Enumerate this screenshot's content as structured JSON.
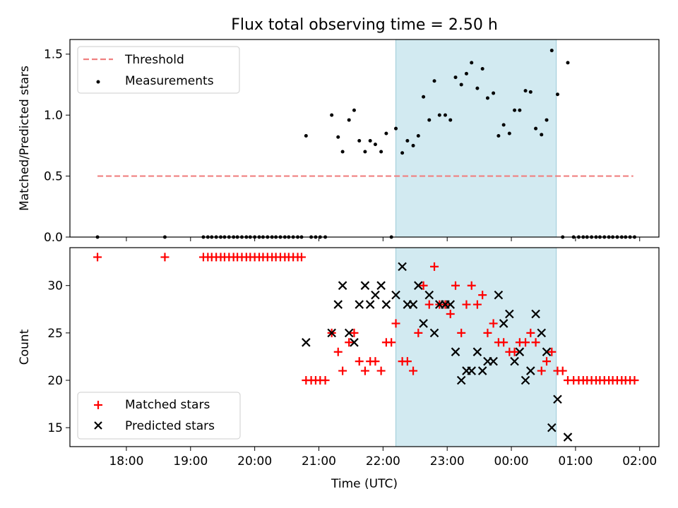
{
  "title": "Flux total observing time = 2.50 h",
  "chart_data": [
    {
      "type": "scatter",
      "panel": "top",
      "ylabel": "Matched/Predicted stars",
      "ylim": [
        0,
        1.62
      ],
      "yticks": [
        "0.0",
        "0.5",
        "1.0",
        "1.5"
      ],
      "ytick_values": [
        0,
        0.5,
        1.0,
        1.5
      ],
      "legend_position": "top-left",
      "threshold": {
        "label": "Threshold",
        "value": 0.5,
        "x_start": 17.55,
        "x_end": 25.9,
        "color": "#f08080"
      },
      "series": [
        {
          "name": "Measurements",
          "color": "#000000",
          "points": [
            [
              17.55,
              0
            ],
            [
              18.6,
              0
            ],
            [
              19.2,
              0
            ],
            [
              19.27,
              0
            ],
            [
              19.33,
              0
            ],
            [
              19.4,
              0
            ],
            [
              19.47,
              0
            ],
            [
              19.53,
              0
            ],
            [
              19.6,
              0
            ],
            [
              19.67,
              0
            ],
            [
              19.73,
              0
            ],
            [
              19.8,
              0
            ],
            [
              19.87,
              0
            ],
            [
              19.93,
              0
            ],
            [
              20.0,
              0
            ],
            [
              20.07,
              0
            ],
            [
              20.13,
              0
            ],
            [
              20.2,
              0
            ],
            [
              20.27,
              0
            ],
            [
              20.33,
              0
            ],
            [
              20.4,
              0
            ],
            [
              20.47,
              0
            ],
            [
              20.53,
              0
            ],
            [
              20.6,
              0
            ],
            [
              20.67,
              0
            ],
            [
              20.73,
              0
            ],
            [
              20.88,
              0
            ],
            [
              20.95,
              0
            ],
            [
              21.02,
              0
            ],
            [
              21.1,
              0
            ],
            [
              22.13,
              0
            ],
            [
              20.8,
              0.83
            ],
            [
              21.2,
              1.0
            ],
            [
              21.3,
              0.82
            ],
            [
              21.37,
              0.7
            ],
            [
              21.47,
              0.96
            ],
            [
              21.55,
              1.04
            ],
            [
              21.63,
              0.79
            ],
            [
              21.72,
              0.7
            ],
            [
              21.8,
              0.79
            ],
            [
              21.88,
              0.76
            ],
            [
              21.97,
              0.7
            ],
            [
              22.05,
              0.85
            ],
            [
              22.2,
              0.89
            ],
            [
              22.3,
              0.69
            ],
            [
              22.38,
              0.79
            ],
            [
              22.47,
              0.75
            ],
            [
              22.55,
              0.83
            ],
            [
              22.63,
              1.15
            ],
            [
              22.72,
              0.96
            ],
            [
              22.8,
              1.28
            ],
            [
              22.88,
              1.0
            ],
            [
              22.97,
              1.0
            ],
            [
              23.05,
              0.96
            ],
            [
              23.13,
              1.31
            ],
            [
              23.22,
              1.25
            ],
            [
              23.3,
              1.34
            ],
            [
              23.38,
              1.43
            ],
            [
              23.47,
              1.22
            ],
            [
              23.55,
              1.38
            ],
            [
              23.63,
              1.14
            ],
            [
              23.72,
              1.18
            ],
            [
              23.8,
              0.83
            ],
            [
              23.88,
              0.92
            ],
            [
              23.97,
              0.85
            ],
            [
              24.05,
              1.04
            ],
            [
              24.13,
              1.04
            ],
            [
              24.22,
              1.2
            ],
            [
              24.3,
              1.19
            ],
            [
              24.38,
              0.89
            ],
            [
              24.47,
              0.84
            ],
            [
              24.55,
              0.96
            ],
            [
              24.63,
              1.53
            ],
            [
              24.72,
              1.17
            ],
            [
              24.88,
              1.43
            ],
            [
              24.8,
              0
            ],
            [
              24.97,
              0
            ],
            [
              25.05,
              0
            ],
            [
              25.12,
              0
            ],
            [
              25.18,
              0
            ],
            [
              25.25,
              0
            ],
            [
              25.32,
              0
            ],
            [
              25.38,
              0
            ],
            [
              25.45,
              0
            ],
            [
              25.52,
              0
            ],
            [
              25.58,
              0
            ],
            [
              25.65,
              0
            ],
            [
              25.72,
              0
            ],
            [
              25.78,
              0
            ],
            [
              25.85,
              0
            ],
            [
              25.92,
              0
            ]
          ]
        }
      ]
    },
    {
      "type": "scatter",
      "panel": "bottom",
      "xlabel": "Time (UTC)",
      "ylabel": "Count",
      "ylim": [
        13,
        34
      ],
      "yticks": [
        "15",
        "20",
        "25",
        "30"
      ],
      "ytick_values": [
        15,
        20,
        25,
        30
      ],
      "legend_position": "bottom-left",
      "series": [
        {
          "name": "Matched stars",
          "color": "#ff0000",
          "marker": "plus",
          "points": [
            [
              17.55,
              33
            ],
            [
              18.6,
              33
            ],
            [
              19.2,
              33
            ],
            [
              19.27,
              33
            ],
            [
              19.33,
              33
            ],
            [
              19.4,
              33
            ],
            [
              19.47,
              33
            ],
            [
              19.53,
              33
            ],
            [
              19.6,
              33
            ],
            [
              19.67,
              33
            ],
            [
              19.73,
              33
            ],
            [
              19.8,
              33
            ],
            [
              19.87,
              33
            ],
            [
              19.93,
              33
            ],
            [
              20.0,
              33
            ],
            [
              20.07,
              33
            ],
            [
              20.13,
              33
            ],
            [
              20.2,
              33
            ],
            [
              20.27,
              33
            ],
            [
              20.33,
              33
            ],
            [
              20.4,
              33
            ],
            [
              20.47,
              33
            ],
            [
              20.53,
              33
            ],
            [
              20.6,
              33
            ],
            [
              20.67,
              33
            ],
            [
              20.73,
              33
            ],
            [
              20.8,
              20
            ],
            [
              20.88,
              20
            ],
            [
              20.95,
              20
            ],
            [
              21.02,
              20
            ],
            [
              21.1,
              20
            ],
            [
              21.2,
              25
            ],
            [
              21.3,
              23
            ],
            [
              21.37,
              21
            ],
            [
              21.47,
              24
            ],
            [
              21.55,
              25
            ],
            [
              21.63,
              22
            ],
            [
              21.72,
              21
            ],
            [
              21.8,
              22
            ],
            [
              21.88,
              22
            ],
            [
              21.97,
              21
            ],
            [
              22.05,
              24
            ],
            [
              22.13,
              24
            ],
            [
              22.2,
              26
            ],
            [
              22.3,
              22
            ],
            [
              22.38,
              22
            ],
            [
              22.47,
              21
            ],
            [
              22.55,
              25
            ],
            [
              22.63,
              30
            ],
            [
              22.72,
              28
            ],
            [
              22.8,
              32
            ],
            [
              22.88,
              28
            ],
            [
              22.97,
              28
            ],
            [
              23.05,
              27
            ],
            [
              23.13,
              30
            ],
            [
              23.22,
              25
            ],
            [
              23.3,
              28
            ],
            [
              23.38,
              30
            ],
            [
              23.47,
              28
            ],
            [
              23.55,
              29
            ],
            [
              23.63,
              25
            ],
            [
              23.72,
              26
            ],
            [
              23.8,
              24
            ],
            [
              23.88,
              24
            ],
            [
              23.97,
              23
            ],
            [
              24.05,
              23
            ],
            [
              24.13,
              24
            ],
            [
              24.22,
              24
            ],
            [
              24.3,
              25
            ],
            [
              24.38,
              24
            ],
            [
              24.47,
              21
            ],
            [
              24.55,
              22
            ],
            [
              24.63,
              23
            ],
            [
              24.72,
              21
            ],
            [
              24.8,
              21
            ],
            [
              24.88,
              20
            ],
            [
              24.97,
              20
            ],
            [
              25.05,
              20
            ],
            [
              25.12,
              20
            ],
            [
              25.18,
              20
            ],
            [
              25.25,
              20
            ],
            [
              25.32,
              20
            ],
            [
              25.38,
              20
            ],
            [
              25.45,
              20
            ],
            [
              25.52,
              20
            ],
            [
              25.58,
              20
            ],
            [
              25.65,
              20
            ],
            [
              25.72,
              20
            ],
            [
              25.78,
              20
            ],
            [
              25.85,
              20
            ],
            [
              25.92,
              20
            ]
          ]
        },
        {
          "name": "Predicted stars",
          "color": "#000000",
          "marker": "x",
          "points": [
            [
              20.8,
              24
            ],
            [
              21.2,
              25
            ],
            [
              21.3,
              28
            ],
            [
              21.37,
              30
            ],
            [
              21.47,
              25
            ],
            [
              21.55,
              24
            ],
            [
              21.63,
              28
            ],
            [
              21.72,
              30
            ],
            [
              21.8,
              28
            ],
            [
              21.88,
              29
            ],
            [
              21.97,
              30
            ],
            [
              22.05,
              28
            ],
            [
              22.2,
              29
            ],
            [
              22.3,
              32
            ],
            [
              22.38,
              28
            ],
            [
              22.47,
              28
            ],
            [
              22.55,
              30
            ],
            [
              22.63,
              26
            ],
            [
              22.72,
              29
            ],
            [
              22.8,
              25
            ],
            [
              22.88,
              28
            ],
            [
              22.97,
              28
            ],
            [
              23.05,
              28
            ],
            [
              23.13,
              23
            ],
            [
              23.22,
              20
            ],
            [
              23.3,
              21
            ],
            [
              23.38,
              21
            ],
            [
              23.47,
              23
            ],
            [
              23.55,
              21
            ],
            [
              23.63,
              22
            ],
            [
              23.72,
              22
            ],
            [
              23.8,
              29
            ],
            [
              23.88,
              26
            ],
            [
              23.97,
              27
            ],
            [
              24.05,
              22
            ],
            [
              24.13,
              23
            ],
            [
              24.22,
              20
            ],
            [
              24.3,
              21
            ],
            [
              24.38,
              27
            ],
            [
              24.47,
              25
            ],
            [
              24.55,
              23
            ],
            [
              24.63,
              15
            ],
            [
              24.72,
              18
            ],
            [
              24.88,
              14
            ]
          ]
        }
      ]
    }
  ],
  "x_axis": {
    "xlim": [
      17.12,
      26.3
    ],
    "tick_values": [
      18,
      19,
      20,
      21,
      22,
      23,
      24,
      25,
      26
    ],
    "tick_labels": [
      "18:00",
      "19:00",
      "20:00",
      "21:00",
      "22:00",
      "23:00",
      "00:00",
      "01:00",
      "02:00"
    ]
  },
  "shaded_span": {
    "x_start": 22.2,
    "x_end": 24.7,
    "color": "#add8e6"
  }
}
